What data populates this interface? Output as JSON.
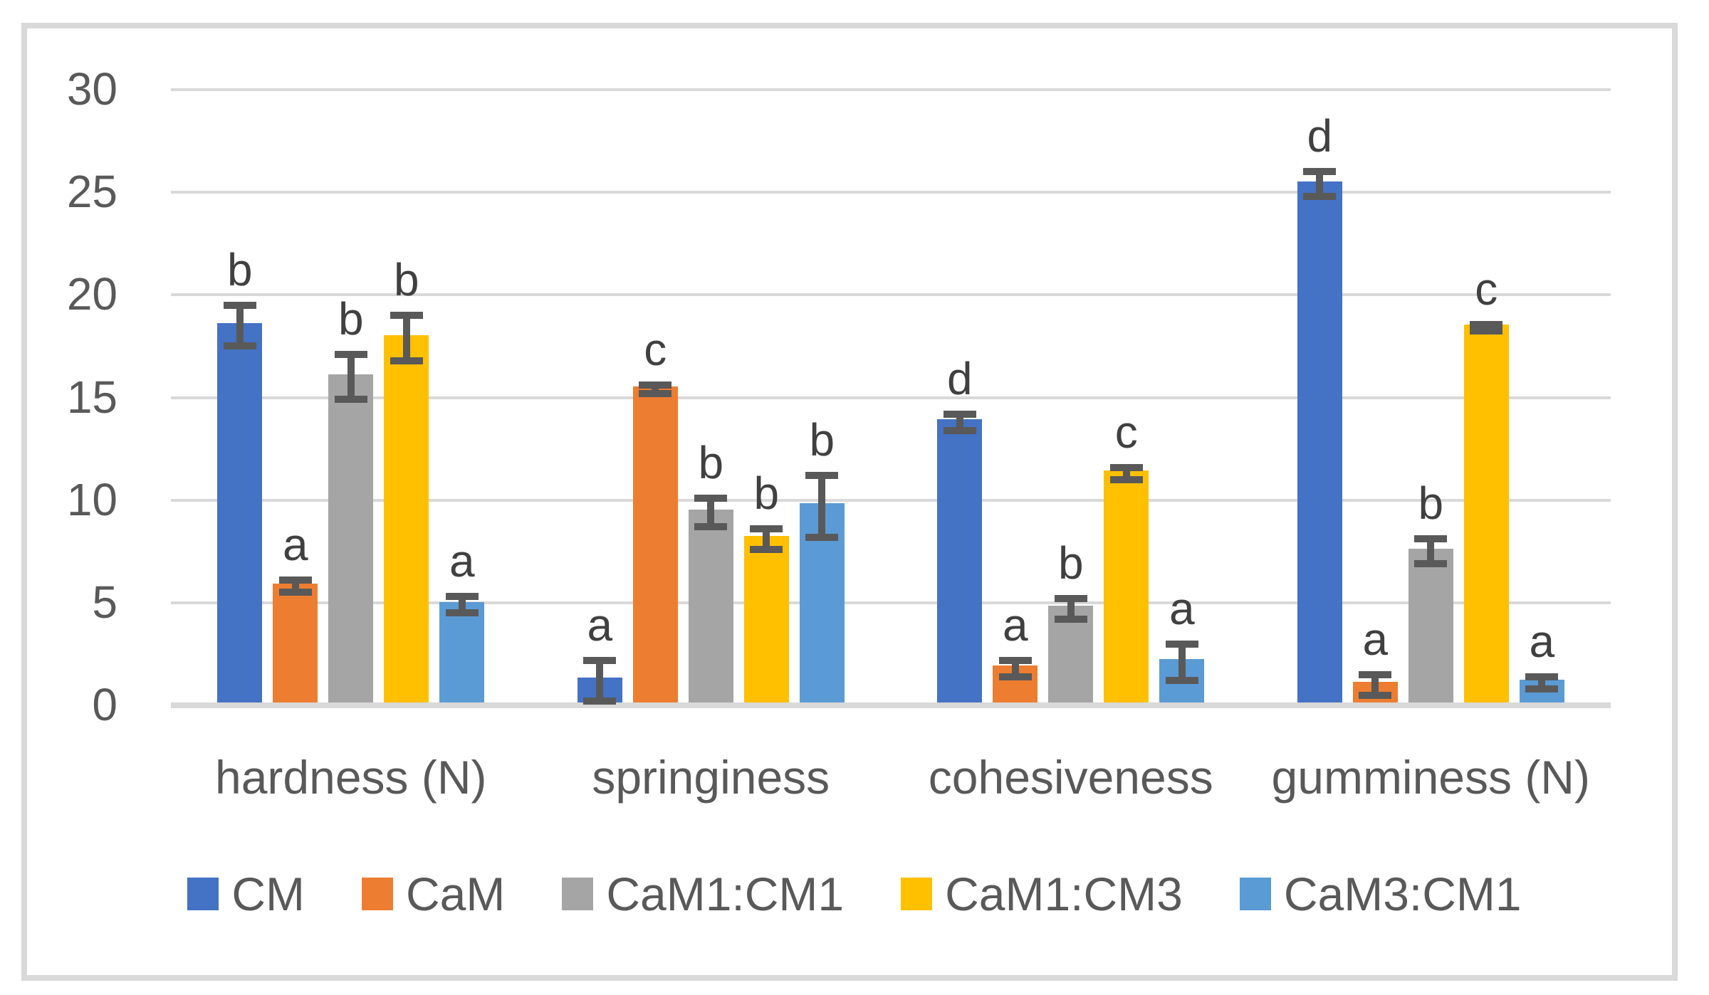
{
  "window": {
    "background": "#FFFFFF",
    "frame_color": "#D9D9D9"
  },
  "y_axis": {
    "ticks": [
      "0",
      "5",
      "10",
      "15",
      "20",
      "25",
      "30"
    ],
    "min": 0,
    "max": 30,
    "step": 5,
    "tick_color": "#595959",
    "gridline_color": "#D9D9D9"
  },
  "chart_data": {
    "type": "bar",
    "title": "",
    "categories": [
      "hardness (N)",
      "springiness",
      "cohesiveness",
      "gumminess (N)"
    ],
    "series": [
      {
        "name": "CM",
        "color": "#4472C4",
        "values": [
          18.5,
          1.2,
          13.8,
          25.4
        ],
        "errors": [
          1.0,
          1.0,
          0.4,
          0.6
        ],
        "letters": [
          "b",
          "a",
          "d",
          "d"
        ]
      },
      {
        "name": "CaM",
        "color": "#ED7D31",
        "values": [
          5.8,
          15.4,
          1.8,
          1.0
        ],
        "errors": [
          0.3,
          0.2,
          0.4,
          0.5
        ],
        "letters": [
          "a",
          "c",
          "a",
          "a"
        ]
      },
      {
        "name": "CaM1:CM1",
        "color": "#A5A5A5",
        "values": [
          16.0,
          9.4,
          4.7,
          7.5
        ],
        "errors": [
          1.1,
          0.7,
          0.5,
          0.6
        ],
        "letters": [
          "b",
          "b",
          "b",
          "b"
        ]
      },
      {
        "name": "CaM1:CM3",
        "color": "#FFC000",
        "values": [
          17.9,
          8.1,
          11.3,
          18.4
        ],
        "errors": [
          1.1,
          0.5,
          0.3,
          0.15
        ],
        "letters": [
          "b",
          "b",
          "c",
          "c"
        ]
      },
      {
        "name": "CaM3:CM1",
        "color": "#5B9BD5",
        "values": [
          4.9,
          9.7,
          2.1,
          1.1
        ],
        "errors": [
          0.4,
          1.5,
          0.9,
          0.3
        ],
        "letters": [
          "a",
          "b",
          "a",
          "a"
        ]
      }
    ],
    "ylim": [
      0,
      30
    ],
    "grid": true,
    "legend_position": "bottom",
    "annotation_note": "significance letters shown above error bars",
    "error_bar_color": "#595959",
    "letter_color": "#404040",
    "category_label_color": "#595959"
  },
  "legend": {
    "text_color": "#595959",
    "items": [
      {
        "label": "CM",
        "color": "#4472C4"
      },
      {
        "label": "CaM",
        "color": "#ED7D31"
      },
      {
        "label": "CaM1:CM1",
        "color": "#A5A5A5"
      },
      {
        "label": "CaM1:CM3",
        "color": "#FFC000"
      },
      {
        "label": "CaM3:CM1",
        "color": "#5B9BD5"
      }
    ]
  }
}
